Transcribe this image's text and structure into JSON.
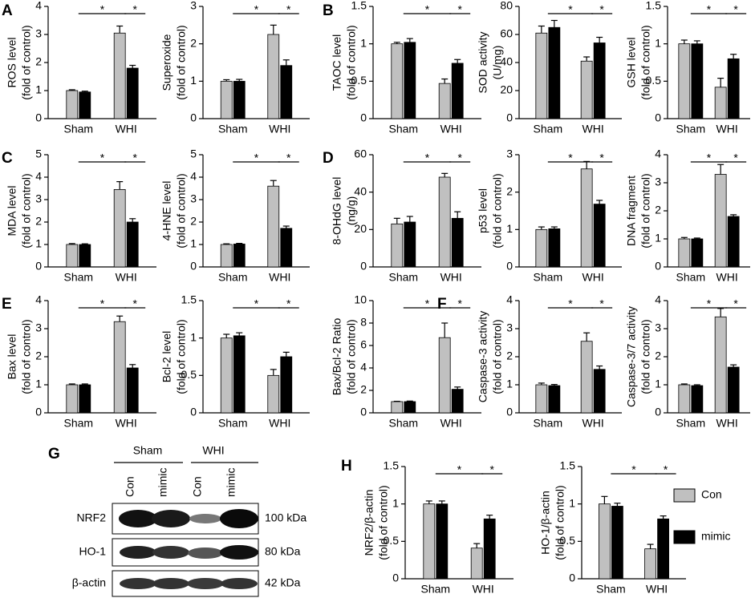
{
  "panel_labels": [
    "A",
    "B",
    "C",
    "D",
    "E",
    "F",
    "G",
    "H"
  ],
  "blot": {
    "groups": [
      "Sham",
      "WHI"
    ],
    "lanes": [
      "Con",
      "mimic",
      "Con",
      "mimic"
    ],
    "rows": [
      "NRF2",
      "HO-1",
      "β-actin"
    ],
    "sizes": [
      "100 kDa",
      "80 kDa",
      "42 kDa"
    ]
  },
  "chart_data": [
    {
      "type": "bar",
      "ylabel": [
        "ROS level",
        "(fold of control)"
      ],
      "categories": [
        "Sham",
        "WHI"
      ],
      "series": [
        {
          "name": "Con",
          "color": "#c0c0c0",
          "values": [
            1.0,
            3.05
          ],
          "errors": [
            0.03,
            0.25
          ]
        },
        {
          "name": "mimic",
          "color": "#000000",
          "values": [
            0.95,
            1.8
          ],
          "errors": [
            0.03,
            0.1
          ]
        }
      ],
      "ylim": [
        0,
        4
      ],
      "yticks": [
        0,
        1,
        2,
        3,
        4
      ],
      "annotations": [
        "*",
        "*"
      ]
    },
    {
      "type": "bar",
      "ylabel": [
        "Superoxide",
        "(fold of control)"
      ],
      "categories": [
        "Sham",
        "WHI"
      ],
      "series": [
        {
          "name": "Con",
          "color": "#c0c0c0",
          "values": [
            1.0,
            2.25
          ],
          "errors": [
            0.04,
            0.25
          ]
        },
        {
          "name": "mimic",
          "color": "#000000",
          "values": [
            1.0,
            1.42
          ],
          "errors": [
            0.05,
            0.15
          ]
        }
      ],
      "ylim": [
        0,
        3
      ],
      "yticks": [
        0,
        1,
        2,
        3
      ],
      "annotations": [
        "*",
        "*"
      ]
    },
    {
      "type": "bar",
      "ylabel": [
        "TAOC level",
        "(fold of control)"
      ],
      "categories": [
        "Sham",
        "WHI"
      ],
      "series": [
        {
          "name": "Con",
          "color": "#c0c0c0",
          "values": [
            1.0,
            0.47
          ],
          "errors": [
            0.02,
            0.06
          ]
        },
        {
          "name": "mimic",
          "color": "#000000",
          "values": [
            1.02,
            0.74
          ],
          "errors": [
            0.05,
            0.05
          ]
        }
      ],
      "ylim": [
        0,
        1.5
      ],
      "yticks": [
        0,
        0.5,
        1,
        1.5
      ],
      "annotations": [
        "*",
        "*"
      ]
    },
    {
      "type": "bar",
      "ylabel": [
        "SOD activity",
        "(U/mg)"
      ],
      "categories": [
        "Sham",
        "WHI"
      ],
      "series": [
        {
          "name": "Con",
          "color": "#c0c0c0",
          "values": [
            61,
            41
          ],
          "errors": [
            5,
            3
          ]
        },
        {
          "name": "mimic",
          "color": "#000000",
          "values": [
            65,
            54
          ],
          "errors": [
            5,
            4
          ]
        }
      ],
      "ylim": [
        0,
        80
      ],
      "yticks": [
        0,
        20,
        40,
        60,
        80
      ],
      "annotations": [
        "*",
        "*"
      ]
    },
    {
      "type": "bar",
      "ylabel": [
        "GSH level",
        "(fold of control)"
      ],
      "categories": [
        "Sham",
        "WHI"
      ],
      "series": [
        {
          "name": "Con",
          "color": "#c0c0c0",
          "values": [
            1.0,
            0.42
          ],
          "errors": [
            0.05,
            0.12
          ]
        },
        {
          "name": "mimic",
          "color": "#000000",
          "values": [
            1.0,
            0.8
          ],
          "errors": [
            0.04,
            0.06
          ]
        }
      ],
      "ylim": [
        0,
        1.5
      ],
      "yticks": [
        0,
        0.5,
        1,
        1.5
      ],
      "annotations": [
        "*",
        "*"
      ]
    },
    {
      "type": "bar",
      "ylabel": [
        "MDA level",
        "(fold of control)"
      ],
      "categories": [
        "Sham",
        "WHI"
      ],
      "series": [
        {
          "name": "Con",
          "color": "#c0c0c0",
          "values": [
            1.0,
            3.45
          ],
          "errors": [
            0.04,
            0.35
          ]
        },
        {
          "name": "mimic",
          "color": "#000000",
          "values": [
            1.0,
            2.0
          ],
          "errors": [
            0.03,
            0.15
          ]
        }
      ],
      "ylim": [
        0,
        5
      ],
      "yticks": [
        0,
        1,
        2,
        3,
        4,
        5
      ],
      "annotations": [
        "*",
        "*"
      ]
    },
    {
      "type": "bar",
      "ylabel": [
        "4-HNE level",
        "(fold of control)"
      ],
      "categories": [
        "Sham",
        "WHI"
      ],
      "series": [
        {
          "name": "Con",
          "color": "#c0c0c0",
          "values": [
            1.0,
            3.6
          ],
          "errors": [
            0.03,
            0.25
          ]
        },
        {
          "name": "mimic",
          "color": "#000000",
          "values": [
            1.02,
            1.72
          ],
          "errors": [
            0.03,
            0.1
          ]
        }
      ],
      "ylim": [
        0,
        5
      ],
      "yticks": [
        0,
        1,
        2,
        3,
        4,
        5
      ],
      "annotations": [
        "*",
        "*"
      ]
    },
    {
      "type": "bar",
      "ylabel": [
        "8-OHdG level",
        "(ng/g)"
      ],
      "categories": [
        "Sham",
        "WHI"
      ],
      "series": [
        {
          "name": "Con",
          "color": "#c0c0c0",
          "values": [
            23,
            48
          ],
          "errors": [
            3,
            2
          ]
        },
        {
          "name": "mimic",
          "color": "#000000",
          "values": [
            24,
            26
          ],
          "errors": [
            3,
            3.5
          ]
        }
      ],
      "ylim": [
        0,
        60
      ],
      "yticks": [
        0,
        20,
        40,
        60
      ],
      "annotations": [
        "*",
        "*"
      ]
    },
    {
      "type": "bar",
      "ylabel": [
        "p53 level",
        "(fold of control)"
      ],
      "categories": [
        "Sham",
        "WHI"
      ],
      "series": [
        {
          "name": "Con",
          "color": "#c0c0c0",
          "values": [
            1.0,
            2.62
          ],
          "errors": [
            0.07,
            0.2
          ]
        },
        {
          "name": "mimic",
          "color": "#000000",
          "values": [
            1.02,
            1.68
          ],
          "errors": [
            0.05,
            0.1
          ]
        }
      ],
      "ylim": [
        0,
        3
      ],
      "yticks": [
        0,
        1,
        2,
        3
      ],
      "annotations": [
        "*",
        "*"
      ]
    },
    {
      "type": "bar",
      "ylabel": [
        "DNA fragment",
        "(fold of control)"
      ],
      "categories": [
        "Sham",
        "WHI"
      ],
      "series": [
        {
          "name": "Con",
          "color": "#c0c0c0",
          "values": [
            1.0,
            3.3
          ],
          "errors": [
            0.05,
            0.35
          ]
        },
        {
          "name": "mimic",
          "color": "#000000",
          "values": [
            1.0,
            1.8
          ],
          "errors": [
            0.03,
            0.06
          ]
        }
      ],
      "ylim": [
        0,
        4
      ],
      "yticks": [
        0,
        1,
        2,
        3,
        4
      ],
      "annotations": [
        "*",
        "*"
      ]
    },
    {
      "type": "bar",
      "ylabel": [
        "Bax level",
        "(fold of control)"
      ],
      "categories": [
        "Sham",
        "WHI"
      ],
      "series": [
        {
          "name": "Con",
          "color": "#c0c0c0",
          "values": [
            1.0,
            3.25
          ],
          "errors": [
            0.03,
            0.2
          ]
        },
        {
          "name": "mimic",
          "color": "#000000",
          "values": [
            1.0,
            1.6
          ],
          "errors": [
            0.03,
            0.12
          ]
        }
      ],
      "ylim": [
        0,
        4
      ],
      "yticks": [
        0,
        1,
        2,
        3,
        4
      ],
      "annotations": [
        "*",
        "*"
      ]
    },
    {
      "type": "bar",
      "ylabel": [
        "Bcl-2 level",
        "(fold of control)"
      ],
      "categories": [
        "Sham",
        "WHI"
      ],
      "series": [
        {
          "name": "Con",
          "color": "#c0c0c0",
          "values": [
            1.0,
            0.5
          ],
          "errors": [
            0.05,
            0.08
          ]
        },
        {
          "name": "mimic",
          "color": "#000000",
          "values": [
            1.03,
            0.75
          ],
          "errors": [
            0.04,
            0.06
          ]
        }
      ],
      "ylim": [
        0,
        1.5
      ],
      "yticks": [
        0,
        0.5,
        1,
        1.5
      ],
      "annotations": [
        "*",
        "*"
      ]
    },
    {
      "type": "bar",
      "ylabel": [
        "Bax/Bcl-2 Ratio",
        "(fold of control)"
      ],
      "categories": [
        "Sham",
        "WHI"
      ],
      "series": [
        {
          "name": "Con",
          "color": "#c0c0c0",
          "values": [
            1.0,
            6.7
          ],
          "errors": [
            0.03,
            1.3
          ]
        },
        {
          "name": "mimic",
          "color": "#000000",
          "values": [
            1.0,
            2.1
          ],
          "errors": [
            0.05,
            0.2
          ]
        }
      ],
      "ylim": [
        0,
        10
      ],
      "yticks": [
        0,
        2,
        4,
        6,
        8,
        10
      ],
      "annotations": [
        "*",
        "*"
      ]
    },
    {
      "type": "bar",
      "ylabel": [
        "Caspase-3 activity",
        "(fold of control)"
      ],
      "categories": [
        "Sham",
        "WHI"
      ],
      "series": [
        {
          "name": "Con",
          "color": "#c0c0c0",
          "values": [
            1.0,
            2.55
          ],
          "errors": [
            0.06,
            0.3
          ]
        },
        {
          "name": "mimic",
          "color": "#000000",
          "values": [
            0.97,
            1.55
          ],
          "errors": [
            0.04,
            0.12
          ]
        }
      ],
      "ylim": [
        0,
        4
      ],
      "yticks": [
        0,
        1,
        2,
        3,
        4
      ],
      "annotations": [
        "*",
        "*"
      ]
    },
    {
      "type": "bar",
      "ylabel": [
        "Caspase-3/7 activity",
        "(fold of control)"
      ],
      "categories": [
        "Sham",
        "WHI"
      ],
      "series": [
        {
          "name": "Con",
          "color": "#c0c0c0",
          "values": [
            1.0,
            3.42
          ],
          "errors": [
            0.03,
            0.3
          ]
        },
        {
          "name": "mimic",
          "color": "#000000",
          "values": [
            0.97,
            1.63
          ],
          "errors": [
            0.03,
            0.08
          ]
        }
      ],
      "ylim": [
        0,
        4
      ],
      "yticks": [
        0,
        1,
        2,
        3,
        4
      ],
      "annotations": [
        "*",
        "*"
      ]
    },
    {
      "type": "bar",
      "ylabel": [
        "NRF2/β-actin",
        "(fold of control)"
      ],
      "categories": [
        "Sham",
        "WHI"
      ],
      "series": [
        {
          "name": "Con",
          "color": "#c0c0c0",
          "values": [
            1.0,
            0.41
          ],
          "errors": [
            0.04,
            0.06
          ]
        },
        {
          "name": "mimic",
          "color": "#000000",
          "values": [
            1.0,
            0.8
          ],
          "errors": [
            0.04,
            0.05
          ]
        }
      ],
      "ylim": [
        0,
        1.5
      ],
      "yticks": [
        0,
        0.5,
        1,
        1.5
      ],
      "annotations": [
        "*",
        "*"
      ]
    },
    {
      "type": "bar",
      "ylabel": [
        "HO-1/β-actin",
        "(fold of control)"
      ],
      "categories": [
        "Sham",
        "WHI"
      ],
      "series": [
        {
          "name": "Con",
          "color": "#c0c0c0",
          "values": [
            1.0,
            0.4
          ],
          "errors": [
            0.1,
            0.06
          ]
        },
        {
          "name": "mimic",
          "color": "#000000",
          "values": [
            0.97,
            0.8
          ],
          "errors": [
            0.04,
            0.04
          ]
        }
      ],
      "ylim": [
        0,
        1.5
      ],
      "yticks": [
        0,
        0.5,
        1,
        1.5
      ],
      "annotations": [
        "*",
        "*"
      ]
    }
  ]
}
